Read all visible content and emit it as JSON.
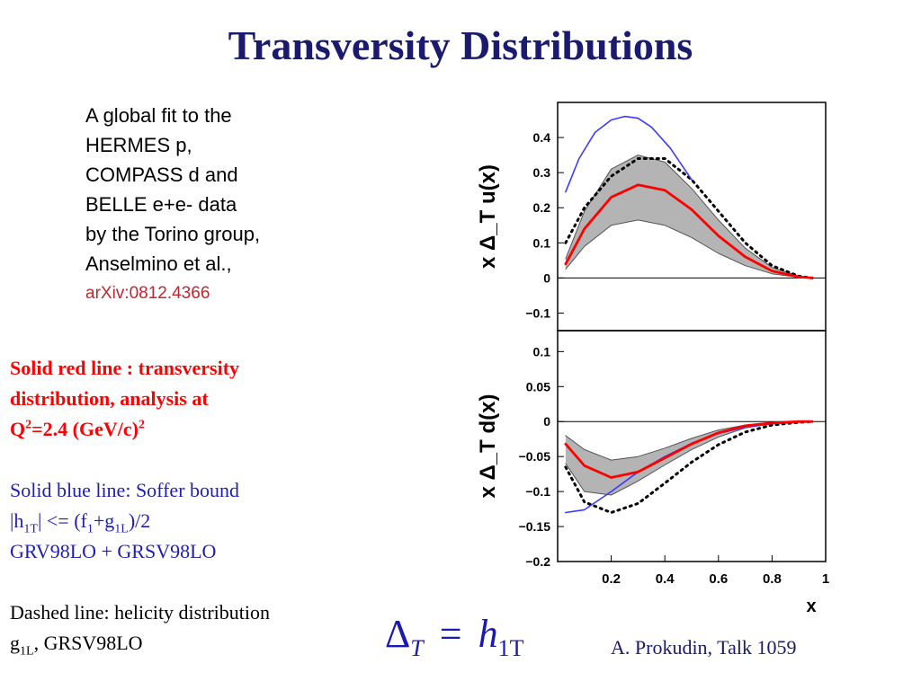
{
  "title": "Transversity Distributions",
  "intro": {
    "lines": [
      "A global fit to the",
      "HERMES p,",
      "COMPASS d and",
      "BELLE e+e- data",
      "by the Torino group,",
      "Anselmino et al.,"
    ],
    "reference": "arXiv:0812.4366",
    "reference_color": "#c0282d"
  },
  "notes": {
    "red": {
      "line1": "Solid red line : transversity",
      "line2": "distribution, analysis at",
      "q_base": "Q",
      "q_sup": "2",
      "q_value": "=2.4 (GeV/c)",
      "q_unit_sup": "2",
      "color": "#ff0000"
    },
    "blue": {
      "line1": "Solid blue line:  Soffer bound",
      "l2_a": "|h",
      "l2_sub1": "1T",
      "l2_b": "| <= (f",
      "l2_sub2": "1",
      "l2_c": "+g",
      "l2_sub3": "1L",
      "l2_d": ")/2",
      "line3": "GRV98LO + GRSV98LO",
      "color": "#1e1eb4"
    },
    "dashed": {
      "line1": "Dashed line: helicity distribution",
      "l2_a": "g",
      "l2_sub": "1L",
      "l2_b": ", GRSV98LO"
    }
  },
  "formula": {
    "lhs": "Δ",
    "lhs_sub": "T",
    "eq": "=",
    "rhs": "h",
    "rhs_sub": "1T"
  },
  "credit": "A. Prokudin, Talk 1059",
  "chart_data": [
    {
      "type": "line",
      "panel": "top",
      "ylabel": "x Δ_T u(x)",
      "xlim": [
        0,
        1
      ],
      "ylim": [
        -0.15,
        0.5
      ],
      "yticks": [
        -0.1,
        0,
        0.1,
        0.2,
        0.3,
        0.4
      ],
      "ytick_labels": [
        "−0.1",
        "0",
        "0.1",
        "0.2",
        "0.3",
        "0.4"
      ],
      "x": [
        0.03,
        0.1,
        0.2,
        0.3,
        0.4,
        0.5,
        0.6,
        0.7,
        0.8,
        0.9,
        0.95
      ],
      "series": [
        {
          "role": "transversity",
          "color": "#ff0000",
          "style": "solid",
          "values": [
            0.04,
            0.14,
            0.23,
            0.265,
            0.25,
            0.195,
            0.12,
            0.06,
            0.02,
            0.003,
            0.0
          ]
        },
        {
          "role": "band-upper",
          "color": "#555555",
          "style": "solid",
          "values": [
            0.055,
            0.19,
            0.31,
            0.35,
            0.33,
            0.255,
            0.165,
            0.085,
            0.03,
            0.005,
            0.0
          ]
        },
        {
          "role": "band-lower",
          "color": "#555555",
          "style": "solid",
          "values": [
            0.025,
            0.09,
            0.15,
            0.165,
            0.15,
            0.115,
            0.07,
            0.035,
            0.012,
            0.002,
            0.0
          ]
        },
        {
          "role": "soffer-bound",
          "color": "#3a3aff",
          "style": "solid",
          "x": [
            0.03,
            0.08,
            0.14,
            0.2,
            0.25,
            0.3,
            0.35,
            0.42,
            0.5
          ],
          "values": [
            0.245,
            0.34,
            0.415,
            0.45,
            0.46,
            0.455,
            0.43,
            0.37,
            0.28
          ]
        },
        {
          "role": "helicity",
          "color": "#000000",
          "style": "dotted",
          "values": [
            0.1,
            0.2,
            0.29,
            0.34,
            0.34,
            0.28,
            0.19,
            0.1,
            0.035,
            0.005,
            0.0
          ]
        }
      ]
    },
    {
      "type": "line",
      "panel": "bottom",
      "ylabel": "x Δ_T d(x)",
      "xlabel": "x",
      "xlim": [
        0,
        1
      ],
      "ylim": [
        -0.2,
        0.13
      ],
      "xticks": [
        0.2,
        0.4,
        0.6,
        0.8,
        1
      ],
      "xtick_labels": [
        "0.2",
        "0.4",
        "0.6",
        "0.8",
        "1"
      ],
      "yticks": [
        -0.2,
        -0.15,
        -0.1,
        -0.05,
        0,
        0.05,
        0.1
      ],
      "ytick_labels": [
        "−0.2",
        "−0.15",
        "−0.1",
        "−0.05",
        "0",
        "0.05",
        "0.1"
      ],
      "x": [
        0.03,
        0.1,
        0.2,
        0.3,
        0.4,
        0.5,
        0.6,
        0.7,
        0.8,
        0.9,
        0.95
      ],
      "series": [
        {
          "role": "transversity",
          "color": "#ff0000",
          "style": "solid",
          "values": [
            -0.032,
            -0.063,
            -0.08,
            -0.072,
            -0.052,
            -0.032,
            -0.016,
            -0.006,
            -0.002,
            0.0,
            0.0
          ]
        },
        {
          "role": "band-upper",
          "color": "#555555",
          "style": "solid",
          "values": [
            -0.02,
            -0.04,
            -0.055,
            -0.05,
            -0.038,
            -0.024,
            -0.012,
            -0.005,
            -0.001,
            0.0,
            0.0
          ]
        },
        {
          "role": "band-lower",
          "color": "#555555",
          "style": "solid",
          "values": [
            -0.06,
            -0.1,
            -0.105,
            -0.085,
            -0.062,
            -0.04,
            -0.022,
            -0.009,
            -0.003,
            0.0,
            0.0
          ]
        },
        {
          "role": "soffer-bound",
          "color": "#3a3aff",
          "style": "solid",
          "values": [
            -0.13,
            -0.126,
            -0.1,
            -0.072,
            -0.05,
            -0.031,
            -0.017,
            -0.008,
            -0.003,
            -0.0005,
            0.0
          ]
        },
        {
          "role": "helicity",
          "color": "#000000",
          "style": "dotted",
          "values": [
            -0.065,
            -0.115,
            -0.13,
            -0.117,
            -0.088,
            -0.058,
            -0.033,
            -0.015,
            -0.005,
            -0.001,
            0.0
          ]
        }
      ]
    }
  ]
}
